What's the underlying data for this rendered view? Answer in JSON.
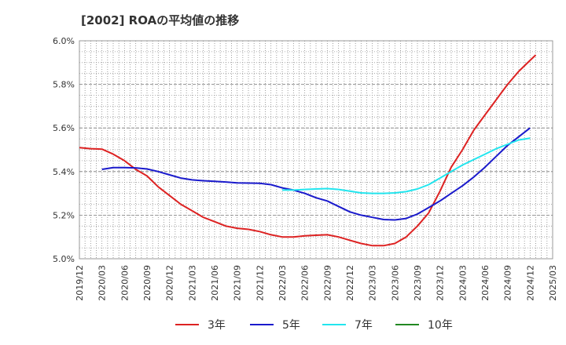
{
  "chart_data": {
    "type": "line",
    "title": "[2002]  ROAの平均値の推移",
    "xlabel": "",
    "ylabel": "",
    "ylim": [
      5.0,
      6.0
    ],
    "y_ticks": [
      "5.0%",
      "5.2%",
      "5.4%",
      "5.6%",
      "5.8%",
      "6.0%"
    ],
    "y_tick_values": [
      5.0,
      5.2,
      5.4,
      5.6,
      5.8,
      6.0
    ],
    "x_ticks": [
      "2019/12",
      "2020/03",
      "2020/06",
      "2020/09",
      "2020/12",
      "2021/03",
      "2021/06",
      "2021/09",
      "2021/12",
      "2022/03",
      "2022/06",
      "2022/09",
      "2022/12",
      "2023/03",
      "2023/06",
      "2023/09",
      "2023/12",
      "2024/03",
      "2024/06",
      "2024/09",
      "2024/12",
      "2025/03"
    ],
    "grid": true,
    "legend_position": "bottom",
    "series": [
      {
        "name": "3年",
        "color": "#dd2222",
        "points": [
          [
            0,
            5.51
          ],
          [
            0.5,
            5.505
          ],
          [
            1,
            5.503
          ],
          [
            1.5,
            5.48
          ],
          [
            2,
            5.45
          ],
          [
            2.5,
            5.41
          ],
          [
            3,
            5.38
          ],
          [
            3.5,
            5.33
          ],
          [
            4,
            5.29
          ],
          [
            4.5,
            5.25
          ],
          [
            5,
            5.22
          ],
          [
            5.5,
            5.19
          ],
          [
            6,
            5.17
          ],
          [
            6.5,
            5.15
          ],
          [
            7,
            5.14
          ],
          [
            7.5,
            5.135
          ],
          [
            8,
            5.125
          ],
          [
            8.5,
            5.11
          ],
          [
            9,
            5.1
          ],
          [
            9.5,
            5.1
          ],
          [
            10,
            5.105
          ],
          [
            10.5,
            5.108
          ],
          [
            11,
            5.11
          ],
          [
            11.5,
            5.1
          ],
          [
            12,
            5.085
          ],
          [
            12.5,
            5.07
          ],
          [
            13,
            5.06
          ],
          [
            13.5,
            5.06
          ],
          [
            14,
            5.07
          ],
          [
            14.5,
            5.1
          ],
          [
            15,
            5.15
          ],
          [
            15.5,
            5.21
          ],
          [
            16,
            5.31
          ],
          [
            16.5,
            5.42
          ],
          [
            17,
            5.5
          ],
          [
            17.5,
            5.59
          ],
          [
            18,
            5.66
          ],
          [
            18.5,
            5.73
          ],
          [
            19,
            5.8
          ],
          [
            19.5,
            5.86
          ],
          [
            20,
            5.91
          ],
          [
            20.25,
            5.935
          ]
        ]
      },
      {
        "name": "5年",
        "color": "#1a1acc",
        "points": [
          [
            1,
            5.41
          ],
          [
            1.5,
            5.418
          ],
          [
            2,
            5.418
          ],
          [
            2.5,
            5.417
          ],
          [
            3,
            5.412
          ],
          [
            3.5,
            5.4
          ],
          [
            4,
            5.385
          ],
          [
            4.5,
            5.37
          ],
          [
            5,
            5.362
          ],
          [
            5.5,
            5.358
          ],
          [
            6,
            5.355
          ],
          [
            6.5,
            5.352
          ],
          [
            7,
            5.348
          ],
          [
            7.5,
            5.347
          ],
          [
            8,
            5.346
          ],
          [
            8.5,
            5.34
          ],
          [
            9,
            5.325
          ],
          [
            9.5,
            5.315
          ],
          [
            10,
            5.3
          ],
          [
            10.5,
            5.28
          ],
          [
            11,
            5.265
          ],
          [
            11.5,
            5.24
          ],
          [
            12,
            5.215
          ],
          [
            12.5,
            5.2
          ],
          [
            13,
            5.19
          ],
          [
            13.5,
            5.18
          ],
          [
            14,
            5.178
          ],
          [
            14.5,
            5.185
          ],
          [
            15,
            5.205
          ],
          [
            15.5,
            5.235
          ],
          [
            16,
            5.265
          ],
          [
            16.5,
            5.3
          ],
          [
            17,
            5.335
          ],
          [
            17.5,
            5.375
          ],
          [
            18,
            5.42
          ],
          [
            18.5,
            5.47
          ],
          [
            19,
            5.52
          ],
          [
            19.5,
            5.56
          ],
          [
            20,
            5.6
          ]
        ]
      },
      {
        "name": "7年",
        "color": "#22e5ee",
        "points": [
          [
            9,
            5.315
          ],
          [
            9.5,
            5.315
          ],
          [
            10,
            5.318
          ],
          [
            10.5,
            5.32
          ],
          [
            11,
            5.322
          ],
          [
            11.5,
            5.318
          ],
          [
            12,
            5.31
          ],
          [
            12.5,
            5.302
          ],
          [
            13,
            5.3
          ],
          [
            13.5,
            5.3
          ],
          [
            14,
            5.302
          ],
          [
            14.5,
            5.308
          ],
          [
            15,
            5.32
          ],
          [
            15.5,
            5.34
          ],
          [
            16,
            5.37
          ],
          [
            16.5,
            5.4
          ],
          [
            17,
            5.43
          ],
          [
            17.5,
            5.455
          ],
          [
            18,
            5.48
          ],
          [
            18.5,
            5.505
          ],
          [
            19,
            5.525
          ],
          [
            19.5,
            5.545
          ],
          [
            20,
            5.553
          ]
        ]
      },
      {
        "name": "10年",
        "color": "#228822",
        "points": []
      }
    ]
  }
}
